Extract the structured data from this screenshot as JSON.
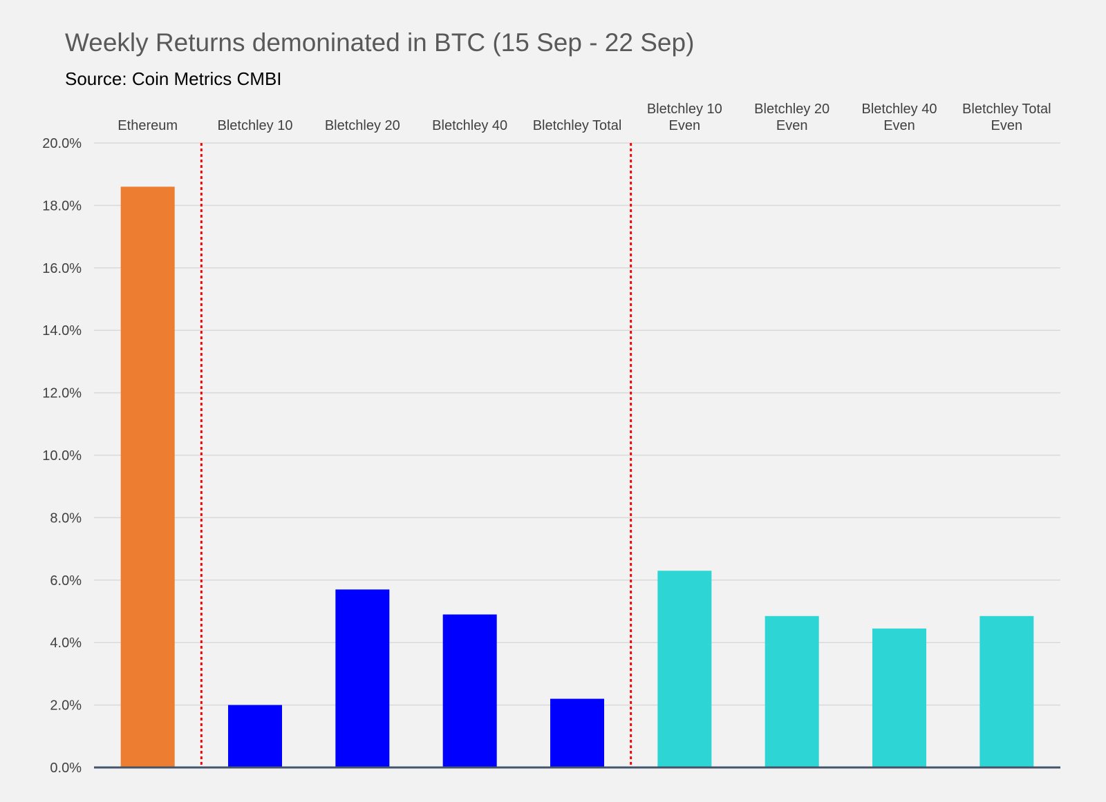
{
  "title": "Weekly Returns demoninated in BTC (15 Sep - 22 Sep)",
  "subtitle": "Source: Coin Metrics CMBI",
  "colors": {
    "ethereum": "#ed7d31",
    "bletchley": "#0000ff",
    "bletchley_even": "#2dd6d4",
    "divider": "#ff0000",
    "grid": "#d9d9d9",
    "axis": "#44546a",
    "background": "#f2f2f2"
  },
  "chart_data": {
    "type": "bar",
    "categories": [
      [
        "Ethereum"
      ],
      [
        "Bletchley 10"
      ],
      [
        "Bletchley 20"
      ],
      [
        "Bletchley 40"
      ],
      [
        "Bletchley Total"
      ],
      [
        "Bletchley 10",
        "Even"
      ],
      [
        "Bletchley 20",
        "Even"
      ],
      [
        "Bletchley 40",
        "Even"
      ],
      [
        "Bletchley Total",
        "Even"
      ]
    ],
    "values": [
      18.6,
      2.0,
      5.7,
      4.9,
      2.2,
      6.3,
      4.85,
      4.45,
      4.85
    ],
    "bar_colors": [
      "ethereum",
      "bletchley",
      "bletchley",
      "bletchley",
      "bletchley",
      "bletchley_even",
      "bletchley_even",
      "bletchley_even",
      "bletchley_even"
    ],
    "unit": "%",
    "ylim": [
      0,
      20
    ],
    "yticks": [
      "0.0%",
      "2.0%",
      "4.0%",
      "6.0%",
      "8.0%",
      "10.0%",
      "12.0%",
      "14.0%",
      "16.0%",
      "18.0%",
      "20.0%"
    ],
    "category_labels_position": "top",
    "group_dividers_after": [
      1,
      5
    ],
    "grid": true,
    "legend": "none",
    "xlabel": "",
    "ylabel": ""
  }
}
